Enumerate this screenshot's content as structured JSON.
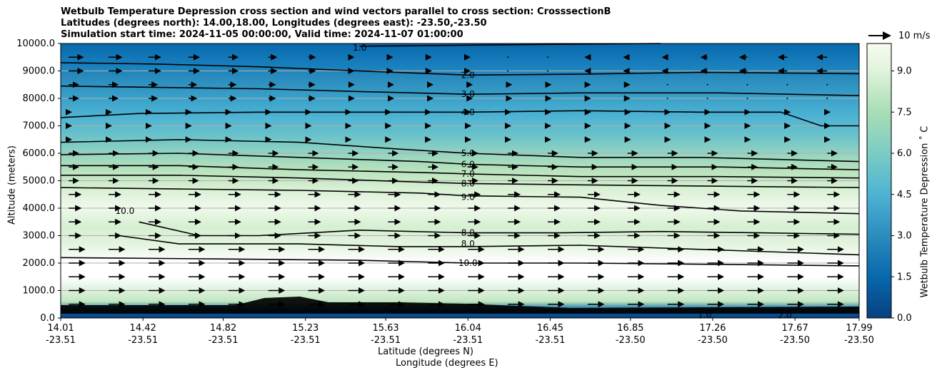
{
  "title_lines": [
    "Wetbulb Temperature Depression cross section and wind vectors parallel to cross section: CrosssectionB",
    "Latitudes (degrees north): 14.00,18.00, Longitudes (degrees east): -23.50,-23.50",
    "Simulation start time: 2024-11-05 00:00:00, Valid time: 2024-11-07 01:00:00"
  ],
  "xlabel_lat": "Latitude (degrees N)",
  "xlabel_lon": "Longitude (degrees E)",
  "ylabel": "Altitude (meters)",
  "colorbar_label": "Wetbulb Temperature Depression ˚ C",
  "quiver_key": "10 m/s",
  "chart_data": {
    "type": "heatmap",
    "x_ticks_lat": [
      "14.01",
      "14.42",
      "14.82",
      "15.23",
      "15.63",
      "16.04",
      "16.45",
      "16.85",
      "17.26",
      "17.67",
      "17.99"
    ],
    "x_ticks_lon": [
      "-23.51",
      "-23.51",
      "-23.51",
      "-23.51",
      "-23.51",
      "-23.51",
      "-23.51",
      "-23.50",
      "-23.50",
      "-23.50",
      "-23.50"
    ],
    "y_ticks": [
      "0.0",
      "1000.0",
      "2000.0",
      "3000.0",
      "4000.0",
      "5000.0",
      "6000.0",
      "7000.0",
      "8000.0",
      "9000.0",
      "10000.0"
    ],
    "ylim": [
      0,
      10000
    ],
    "xlim": [
      14.01,
      17.99
    ],
    "colorbar_ticks": [
      "0.0",
      "1.5",
      "3.0",
      "4.5",
      "6.0",
      "7.5",
      "9.0"
    ],
    "colorbar_range": [
      0,
      10
    ],
    "colormap": "GnBu_r",
    "grid": "horizontal",
    "contour_labels": [
      {
        "text": "1.0",
        "x": 15.5,
        "y": 9850
      },
      {
        "text": "2.0",
        "x": 16.04,
        "y": 8850
      },
      {
        "text": "3.0",
        "x": 16.04,
        "y": 8150
      },
      {
        "text": "4.0",
        "x": 16.04,
        "y": 7500
      },
      {
        "text": "5.0",
        "x": 16.04,
        "y": 6000
      },
      {
        "text": "6.0",
        "x": 16.04,
        "y": 5600
      },
      {
        "text": "7.0",
        "x": 16.04,
        "y": 5250
      },
      {
        "text": "8.0",
        "x": 16.04,
        "y": 4900
      },
      {
        "text": "9.0",
        "x": 16.04,
        "y": 4400
      },
      {
        "text": "10.0",
        "x": 14.33,
        "y": 3900
      },
      {
        "text": "8.0",
        "x": 16.04,
        "y": 3100
      },
      {
        "text": "8.0",
        "x": 16.04,
        "y": 2700
      },
      {
        "text": "10.0",
        "x": 16.04,
        "y": 2000
      },
      {
        "text": "1.0",
        "x": 17.22,
        "y": 100
      },
      {
        "text": "2.0",
        "x": 17.62,
        "y": 100
      }
    ],
    "contours": [
      {
        "level": 1.0,
        "points": [
          [
            15.5,
            9900
          ],
          [
            16.2,
            9950
          ],
          [
            17.0,
            10000
          ]
        ]
      },
      {
        "level": 2.0,
        "points": [
          [
            14.01,
            9300
          ],
          [
            14.5,
            9250
          ],
          [
            15.0,
            9150
          ],
          [
            15.5,
            9000
          ],
          [
            16.04,
            8850
          ],
          [
            16.6,
            8880
          ],
          [
            17.2,
            8950
          ],
          [
            17.99,
            8900
          ]
        ]
      },
      {
        "level": 3.0,
        "points": [
          [
            14.01,
            8450
          ],
          [
            14.5,
            8400
          ],
          [
            15.0,
            8350
          ],
          [
            15.5,
            8250
          ],
          [
            16.04,
            8150
          ],
          [
            16.6,
            8200
          ],
          [
            17.3,
            8200
          ],
          [
            17.99,
            8100
          ]
        ]
      },
      {
        "level": 4.0,
        "points": [
          [
            14.01,
            7300
          ],
          [
            14.4,
            7450
          ],
          [
            15.0,
            7500
          ],
          [
            15.6,
            7500
          ],
          [
            16.04,
            7500
          ],
          [
            16.6,
            7550
          ],
          [
            17.2,
            7500
          ],
          [
            17.6,
            7500
          ],
          [
            17.8,
            7000
          ],
          [
            17.99,
            7000
          ]
        ]
      },
      {
        "level": 5.0,
        "points": [
          [
            14.01,
            6400
          ],
          [
            14.6,
            6500
          ],
          [
            15.2,
            6400
          ],
          [
            15.7,
            6150
          ],
          [
            16.04,
            6000
          ],
          [
            16.6,
            5850
          ],
          [
            17.2,
            5850
          ],
          [
            17.99,
            5700
          ]
        ]
      },
      {
        "level": 6.0,
        "points": [
          [
            14.01,
            5950
          ],
          [
            14.6,
            6000
          ],
          [
            15.2,
            5850
          ],
          [
            15.8,
            5700
          ],
          [
            16.04,
            5600
          ],
          [
            16.6,
            5500
          ],
          [
            17.3,
            5500
          ],
          [
            17.99,
            5400
          ]
        ]
      },
      {
        "level": 7.0,
        "points": [
          [
            14.01,
            5550
          ],
          [
            14.6,
            5550
          ],
          [
            15.2,
            5400
          ],
          [
            15.8,
            5300
          ],
          [
            16.04,
            5250
          ],
          [
            16.6,
            5150
          ],
          [
            17.3,
            5150
          ],
          [
            17.99,
            5100
          ]
        ]
      },
      {
        "level": 8.0,
        "points": [
          [
            14.01,
            5200
          ],
          [
            14.6,
            5200
          ],
          [
            15.2,
            5100
          ],
          [
            15.8,
            4950
          ],
          [
            16.04,
            4900
          ],
          [
            16.6,
            4850
          ],
          [
            17.3,
            4800
          ],
          [
            17.99,
            4750
          ]
        ]
      },
      {
        "level": 9.0,
        "points": [
          [
            14.01,
            4750
          ],
          [
            14.6,
            4700
          ],
          [
            15.2,
            4650
          ],
          [
            15.8,
            4550
          ],
          [
            16.04,
            4450
          ],
          [
            16.6,
            4400
          ],
          [
            17.0,
            4100
          ],
          [
            17.4,
            3900
          ],
          [
            17.99,
            3800
          ]
        ]
      },
      {
        "level": 10.0,
        "points": [
          [
            14.4,
            3500
          ],
          [
            14.7,
            3000
          ],
          [
            15.0,
            3000
          ],
          [
            15.5,
            3200
          ],
          [
            16.04,
            3100
          ],
          [
            16.5,
            3100
          ],
          [
            17.0,
            3150
          ],
          [
            17.5,
            3100
          ],
          [
            17.99,
            3050
          ]
        ]
      },
      {
        "level": 8.0,
        "points": [
          [
            14.3,
            3000
          ],
          [
            14.6,
            2700
          ],
          [
            15.2,
            2700
          ],
          [
            15.7,
            2600
          ],
          [
            16.04,
            2600
          ],
          [
            16.6,
            2650
          ],
          [
            17.2,
            2500
          ],
          [
            17.99,
            2300
          ]
        ]
      },
      {
        "level": 10.0,
        "points": [
          [
            14.01,
            2200
          ],
          [
            14.8,
            2150
          ],
          [
            15.5,
            2100
          ],
          [
            16.04,
            2000
          ],
          [
            16.6,
            2000
          ],
          [
            17.3,
            1950
          ],
          [
            17.99,
            1900
          ]
        ]
      }
    ]
  }
}
